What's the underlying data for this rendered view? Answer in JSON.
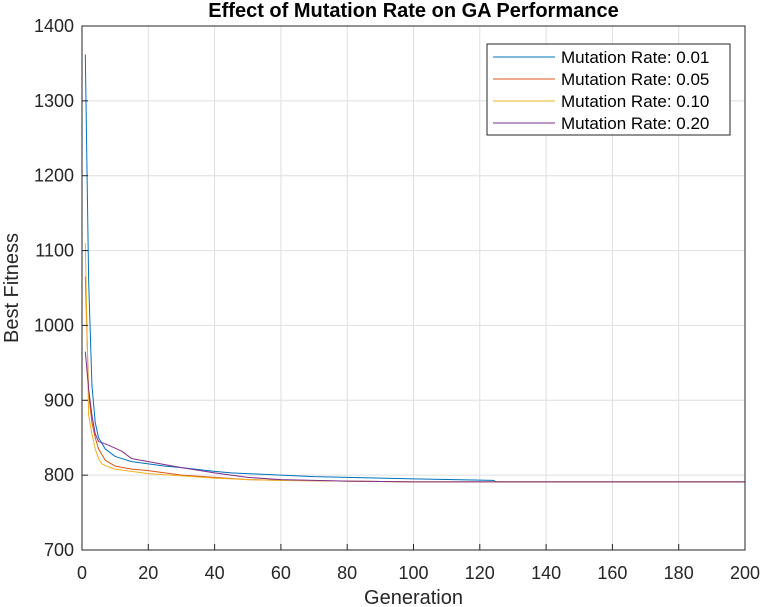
{
  "chart_data": {
    "type": "line",
    "title": "Effect of Mutation Rate on GA Performance",
    "xlabel": "Generation",
    "ylabel": "Best Fitness",
    "xlim": [
      0,
      200
    ],
    "ylim": [
      700,
      1400
    ],
    "xticks": [
      0,
      20,
      40,
      60,
      80,
      100,
      120,
      140,
      160,
      180,
      200
    ],
    "yticks": [
      700,
      800,
      900,
      1000,
      1100,
      1200,
      1300,
      1400
    ],
    "grid": true,
    "legend_position": "top-right",
    "series": [
      {
        "name": "Mutation Rate: 0.01",
        "color": "#0072BD",
        "x": [
          1,
          2,
          3,
          4,
          5,
          7,
          10,
          15,
          20,
          25,
          30,
          40,
          45,
          60,
          70,
          80,
          100,
          124,
          125,
          200
        ],
        "y": [
          1362,
          1060,
          920,
          870,
          850,
          835,
          825,
          818,
          815,
          812,
          810,
          805,
          803,
          800,
          798,
          797,
          795,
          793,
          791,
          791
        ]
      },
      {
        "name": "Mutation Rate: 0.05",
        "color": "#D95319",
        "x": [
          1,
          2,
          3,
          4,
          5,
          7,
          10,
          15,
          20,
          30,
          40,
          50,
          60,
          80,
          100,
          200
        ],
        "y": [
          1065,
          910,
          870,
          850,
          835,
          820,
          812,
          808,
          806,
          800,
          797,
          794,
          793,
          792,
          791,
          791
        ]
      },
      {
        "name": "Mutation Rate: 0.10",
        "color": "#EDB120",
        "x": [
          1,
          2,
          3,
          4,
          5,
          6,
          8,
          10,
          15,
          20,
          30,
          40,
          50,
          60,
          80,
          100,
          200
        ],
        "y": [
          1110,
          880,
          855,
          835,
          822,
          815,
          811,
          808,
          805,
          802,
          799,
          796,
          794,
          793,
          792,
          791,
          791
        ]
      },
      {
        "name": "Mutation Rate: 0.20",
        "color": "#7E2F8E",
        "x": [
          1,
          2,
          3,
          4,
          5,
          8,
          12,
          15,
          20,
          25,
          30,
          40,
          50,
          60,
          80,
          100,
          200
        ],
        "y": [
          965,
          915,
          880,
          855,
          845,
          840,
          832,
          822,
          818,
          814,
          810,
          803,
          797,
          794,
          792,
          791,
          791
        ]
      }
    ]
  }
}
